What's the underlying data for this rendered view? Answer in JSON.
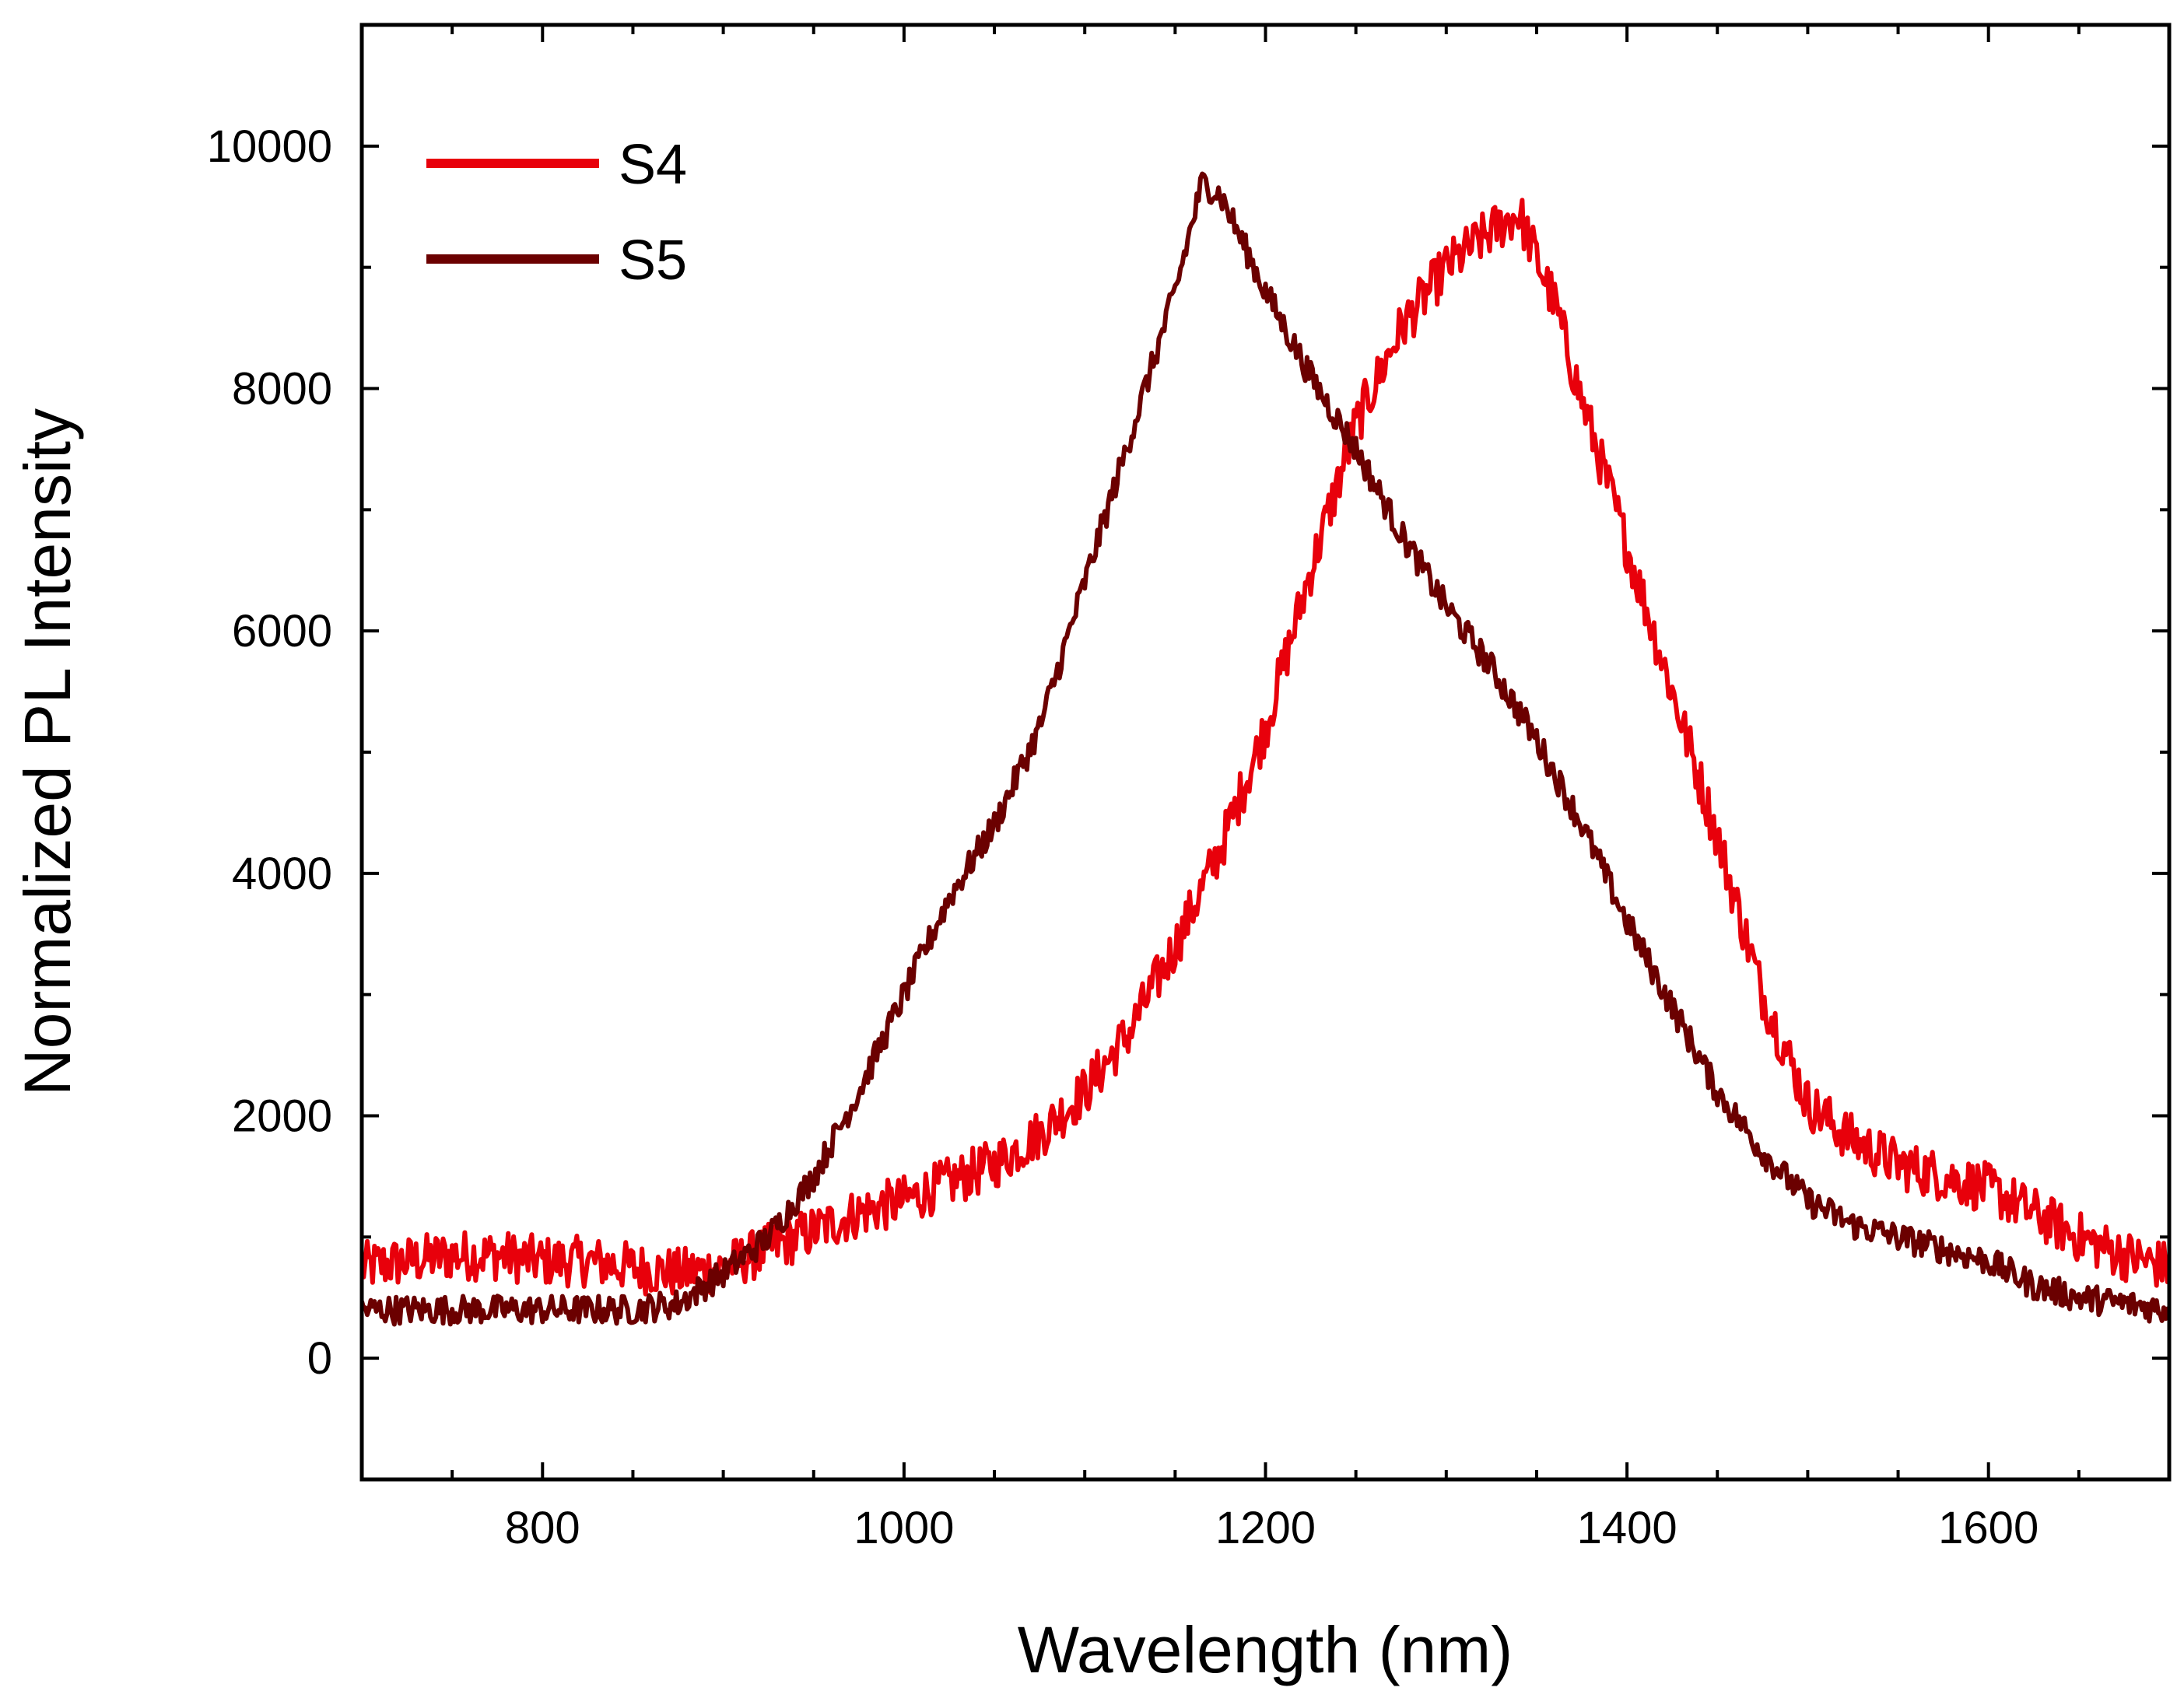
{
  "chart_data": {
    "type": "line",
    "title": "",
    "xlabel": "Wavelength (nm)",
    "ylabel": "Normalized PL Intensity",
    "xlim": [
      700,
      1700
    ],
    "ylim": [
      -1000,
      11000
    ],
    "xticks": [
      800,
      1000,
      1200,
      1400,
      1600
    ],
    "xtick_labels": [
      "800",
      "1000",
      "1200",
      "1400",
      "1600"
    ],
    "yticks": [
      0,
      2000,
      4000,
      6000,
      8000,
      10000
    ],
    "ytick_labels": [
      "0",
      "2000",
      "4000",
      "6000",
      "8000",
      "10000"
    ],
    "grid": false,
    "legend_position": "top-left",
    "series": [
      {
        "name": "S4",
        "color": "#e8000b",
        "x": [
          700,
          725,
          750,
          775,
          800,
          825,
          850,
          875,
          900,
          925,
          950,
          975,
          1000,
          1025,
          1050,
          1075,
          1100,
          1125,
          1150,
          1175,
          1200,
          1225,
          1250,
          1275,
          1300,
          1325,
          1340,
          1360,
          1375,
          1400,
          1425,
          1450,
          1475,
          1500,
          1525,
          1550,
          1575,
          1600,
          1625,
          1650,
          1675,
          1700
        ],
        "values": [
          750,
          800,
          850,
          850,
          800,
          800,
          750,
          700,
          750,
          900,
          1050,
          1200,
          1300,
          1450,
          1600,
          1850,
          2200,
          2700,
          3400,
          4200,
          5200,
          6500,
          7700,
          8500,
          9000,
          9300,
          9450,
          8700,
          7900,
          6700,
          5500,
          4300,
          3000,
          2100,
          1800,
          1600,
          1500,
          1400,
          1200,
          1000,
          850,
          750
        ]
      },
      {
        "name": "S5",
        "color": "#6b0000",
        "x": [
          700,
          725,
          750,
          775,
          800,
          825,
          850,
          875,
          900,
          925,
          950,
          975,
          1000,
          1025,
          1050,
          1075,
          1100,
          1125,
          1150,
          1165,
          1175,
          1200,
          1225,
          1250,
          1275,
          1300,
          1325,
          1350,
          1375,
          1400,
          1425,
          1450,
          1475,
          1500,
          1525,
          1550,
          1575,
          1600,
          1625,
          1650,
          1675,
          1700
        ],
        "values": [
          400,
          400,
          400,
          400,
          400,
          400,
          400,
          450,
          700,
          1000,
          1500,
          2200,
          3000,
          3800,
          4400,
          5200,
          6400,
          7600,
          8800,
          9700,
          9600,
          8800,
          8100,
          7500,
          6800,
          6200,
          5700,
          5100,
          4400,
          3600,
          2900,
          2200,
          1700,
          1300,
          1100,
          1000,
          900,
          800,
          600,
          500,
          450,
          400
        ]
      }
    ]
  }
}
